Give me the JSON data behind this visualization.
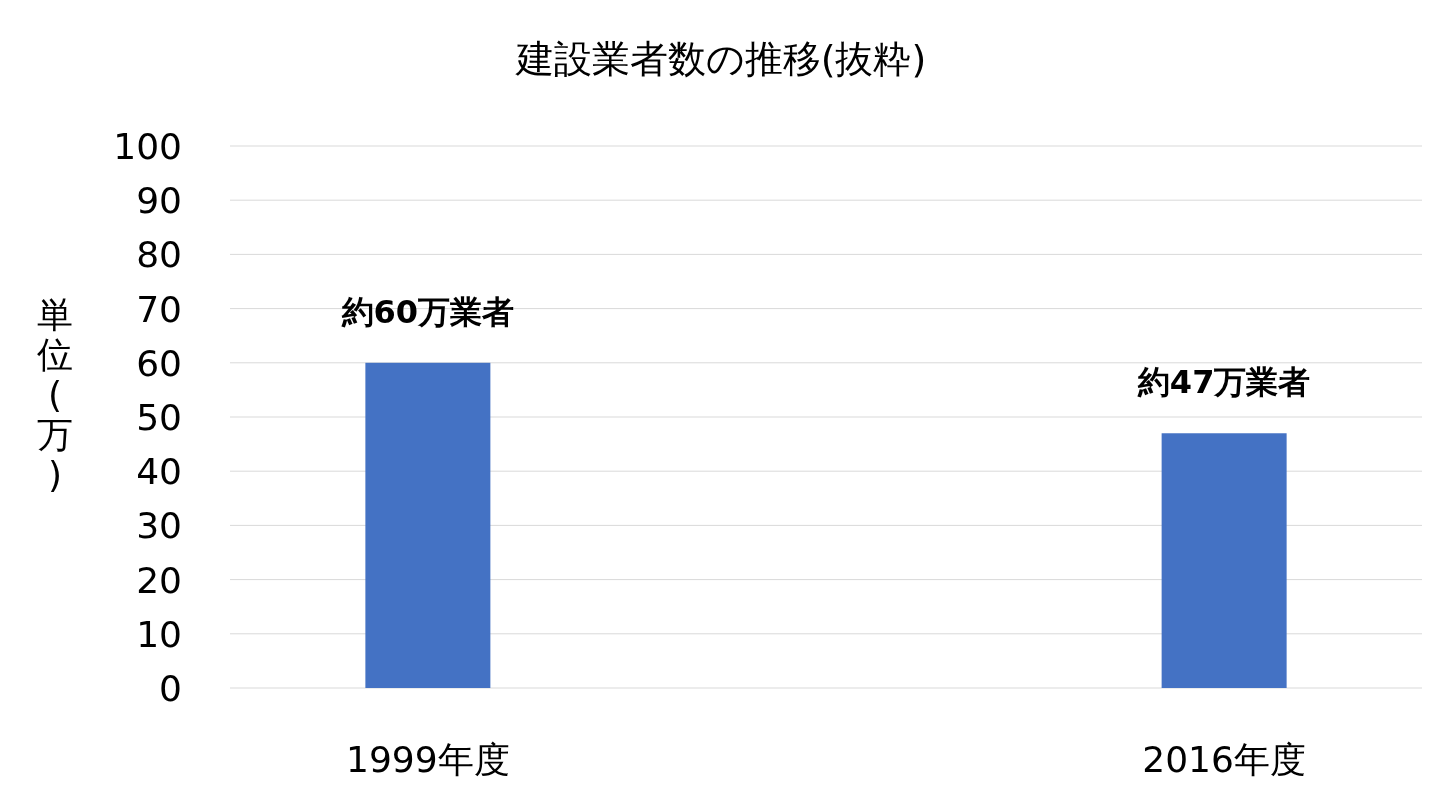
{
  "chart_data": {
    "type": "bar",
    "title": "建設業者数の推移(抜粋)",
    "ylabel": "単位(万)",
    "categories": [
      "1999年度",
      "2016年度"
    ],
    "values": [
      60,
      47
    ],
    "value_labels": [
      "約60万業者",
      "約47万業者"
    ],
    "color": "#4472c4",
    "ylim": [
      0,
      100
    ],
    "yticks": [
      0,
      10,
      20,
      30,
      40,
      50,
      60,
      70,
      80,
      90,
      100
    ],
    "grid": "y"
  }
}
